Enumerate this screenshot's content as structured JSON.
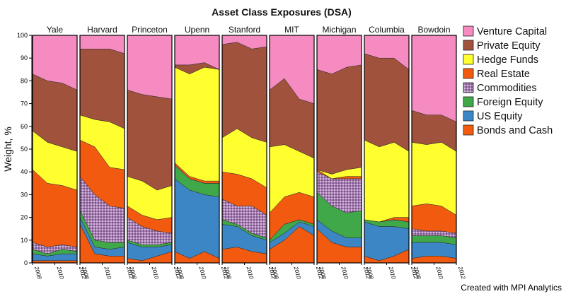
{
  "chart_data": {
    "type": "area",
    "title": "Asset Class Exposures (DSA)",
    "ylabel": "Weight, %",
    "ylim": [
      0,
      100
    ],
    "yticks": [
      0,
      10,
      20,
      30,
      40,
      50,
      60,
      70,
      80,
      90,
      100
    ],
    "xticks": [
      "2008",
      "2010",
      "2012"
    ],
    "legend_position": "right",
    "grid": false,
    "credit": "Created with MPI Analytics",
    "series": [
      {
        "name": "Bonds and Cash",
        "color": "#F25A0F"
      },
      {
        "name": "US Equity",
        "color": "#3D86C6"
      },
      {
        "name": "Foreign Equity",
        "color": "#40A848"
      },
      {
        "name": "Commodities",
        "color": "#9C6FA8",
        "pattern": true
      },
      {
        "name": "Real Estate",
        "color": "#F25A0F"
      },
      {
        "name": "Hedge Funds",
        "color": "#FFFF30"
      },
      {
        "name": "Private Equity",
        "color": "#A0523C"
      },
      {
        "name": "Venture Capital",
        "color": "#F58BC1"
      }
    ],
    "panels": [
      {
        "name": "Yale",
        "weights": [
          [
            1,
            3,
            2,
            3,
            32,
            17,
            25,
            17
          ],
          [
            1,
            2,
            1,
            3,
            28,
            18,
            27,
            20
          ],
          [
            1,
            3,
            2,
            2,
            26,
            17,
            28,
            21
          ],
          [
            1,
            3,
            1,
            2,
            25,
            17,
            27,
            24
          ]
        ]
      },
      {
        "name": "Harvard",
        "weights": [
          [
            17,
            3,
            3,
            15,
            16,
            11,
            29,
            6
          ],
          [
            4,
            3,
            3,
            20,
            21,
            12,
            31,
            6
          ],
          [
            3,
            3,
            3,
            16,
            17,
            20,
            32,
            6
          ],
          [
            3,
            4,
            2,
            15,
            17,
            18,
            33,
            8
          ]
        ]
      },
      {
        "name": "Princeton",
        "weights": [
          [
            2,
            7,
            1,
            10,
            5,
            13,
            38,
            24
          ],
          [
            1,
            6,
            1,
            8,
            5,
            15,
            38,
            26
          ],
          [
            3,
            4,
            1,
            6,
            5,
            13,
            41,
            27
          ],
          [
            5,
            3,
            1,
            4,
            7,
            14,
            38,
            28
          ]
        ]
      },
      {
        "name": "Upenn",
        "weights": [
          [
            5,
            32,
            6,
            0,
            1,
            42,
            1,
            13
          ],
          [
            2,
            30,
            5,
            0,
            1,
            45,
            4,
            13
          ],
          [
            5,
            25,
            5,
            0,
            1,
            50,
            2,
            12
          ],
          [
            2,
            27,
            6,
            0,
            1,
            49,
            0,
            15
          ]
        ]
      },
      {
        "name": "Stanford",
        "weights": [
          [
            6,
            11,
            2,
            9,
            12,
            15,
            41,
            4
          ],
          [
            7,
            9,
            1,
            8,
            14,
            20,
            38,
            3
          ],
          [
            5,
            7,
            1,
            12,
            12,
            18,
            39,
            6
          ],
          [
            4,
            6,
            1,
            10,
            12,
            20,
            42,
            5
          ]
        ]
      },
      {
        "name": "MIT",
        "weights": [
          [
            6,
            3,
            1,
            0,
            12,
            29,
            25,
            24
          ],
          [
            10,
            3,
            4,
            0,
            12,
            23,
            29,
            19
          ],
          [
            16,
            2,
            1,
            0,
            12,
            18,
            23,
            28
          ],
          [
            12,
            4,
            1,
            0,
            12,
            17,
            24,
            30
          ]
        ]
      },
      {
        "name": "Michigan",
        "weights": [
          [
            15,
            4,
            12,
            9,
            1,
            0,
            44,
            15
          ],
          [
            9,
            5,
            11,
            12,
            0,
            2,
            44,
            17
          ],
          [
            7,
            4,
            11,
            15,
            1,
            3,
            45,
            14
          ],
          [
            7,
            4,
            12,
            14,
            1,
            4,
            45,
            13
          ]
        ]
      },
      {
        "name": "Columbia",
        "weights": [
          [
            3,
            15,
            1,
            0,
            0,
            35,
            38,
            8
          ],
          [
            1,
            15,
            2,
            0,
            0,
            33,
            39,
            10
          ],
          [
            3,
            13,
            3,
            0,
            1,
            33,
            37,
            10
          ],
          [
            6,
            9,
            3,
            0,
            2,
            29,
            36,
            15
          ]
        ]
      },
      {
        "name": "Bowdoin",
        "weights": [
          [
            2,
            7,
            3,
            3,
            10,
            28,
            14,
            33
          ],
          [
            3,
            6,
            3,
            2,
            12,
            26,
            13,
            35
          ],
          [
            3,
            6,
            3,
            2,
            11,
            28,
            12,
            35
          ],
          [
            2,
            6,
            3,
            2,
            8,
            28,
            13,
            38
          ]
        ]
      }
    ]
  }
}
